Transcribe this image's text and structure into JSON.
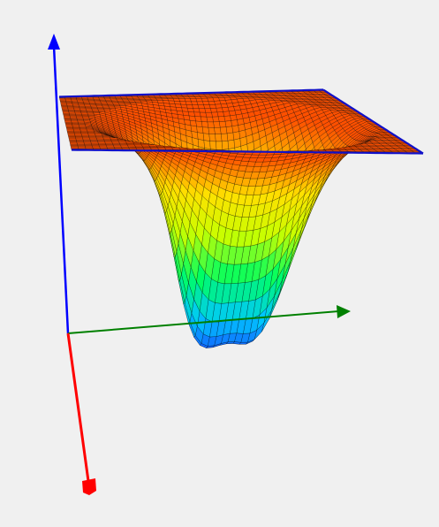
{
  "scene": {
    "background": "#f0f0f0",
    "plot_type": "3d-surface",
    "surface": {
      "colormap": "jet",
      "colormap_stops": [
        "#1a3cff",
        "#00c8ff",
        "#00ff60",
        "#c8ff00",
        "#ffe000",
        "#ff5000"
      ],
      "mesh_color": "#000000",
      "edge_color": "#1010c8",
      "shape": "double-well"
    },
    "axes": [
      {
        "name": "x-axis",
        "color": "#ff0000"
      },
      {
        "name": "y-axis",
        "color": "#008000"
      },
      {
        "name": "z-axis",
        "color": "#0000ff"
      }
    ]
  }
}
